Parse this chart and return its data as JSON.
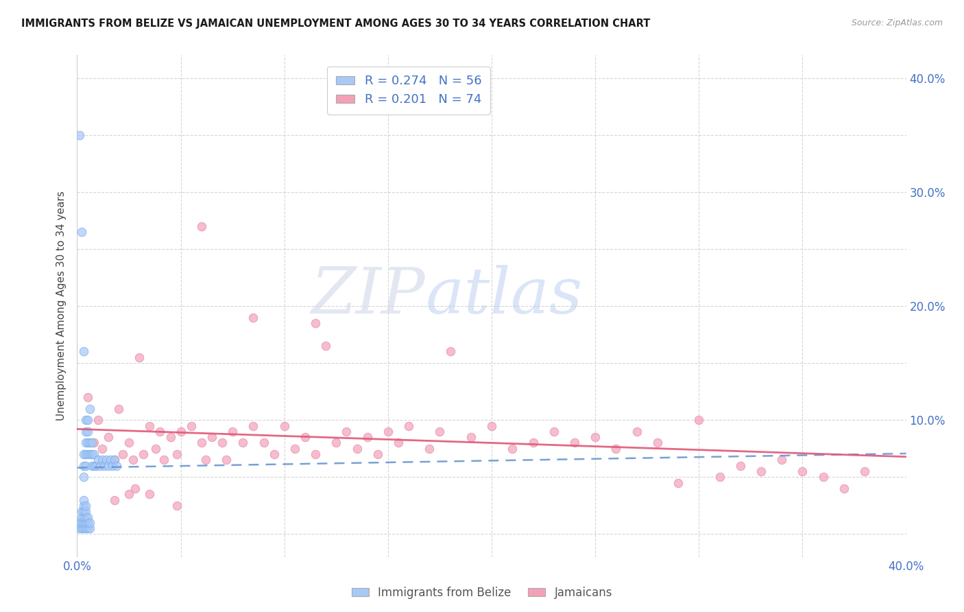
{
  "title": "IMMIGRANTS FROM BELIZE VS JAMAICAN UNEMPLOYMENT AMONG AGES 30 TO 34 YEARS CORRELATION CHART",
  "source": "Source: ZipAtlas.com",
  "ylabel": "Unemployment Among Ages 30 to 34 years",
  "xlim": [
    0.0,
    0.4
  ],
  "ylim": [
    -0.02,
    0.42
  ],
  "background_color": "#ffffff",
  "watermark_zip": "ZIP",
  "watermark_atlas": "atlas",
  "legend_R1": "R = 0.274",
  "legend_N1": "N = 56",
  "legend_R2": "R = 0.201",
  "legend_N2": "N = 74",
  "color_belize": "#a8c8f8",
  "color_jamaican": "#f4a0b8",
  "color_text_blue": "#4472c4",
  "color_trendline_belize": "#6090d0",
  "color_trendline_jamaican": "#e05878",
  "belize_x": [
    0.001,
    0.001,
    0.001,
    0.002,
    0.002,
    0.002,
    0.002,
    0.002,
    0.003,
    0.003,
    0.003,
    0.003,
    0.003,
    0.003,
    0.003,
    0.003,
    0.003,
    0.003,
    0.004,
    0.004,
    0.004,
    0.004,
    0.004,
    0.004,
    0.004,
    0.004,
    0.004,
    0.004,
    0.005,
    0.005,
    0.005,
    0.005,
    0.005,
    0.005,
    0.005,
    0.006,
    0.006,
    0.006,
    0.006,
    0.006,
    0.007,
    0.007,
    0.007,
    0.008,
    0.008,
    0.009,
    0.01,
    0.011,
    0.012,
    0.013,
    0.014,
    0.015,
    0.016,
    0.017,
    0.018,
    0.019
  ],
  "belize_y": [
    0.35,
    0.005,
    0.01,
    0.265,
    0.005,
    0.01,
    0.015,
    0.02,
    0.16,
    0.005,
    0.01,
    0.015,
    0.02,
    0.025,
    0.03,
    0.05,
    0.06,
    0.07,
    0.005,
    0.01,
    0.015,
    0.02,
    0.025,
    0.06,
    0.07,
    0.08,
    0.09,
    0.1,
    0.005,
    0.01,
    0.015,
    0.07,
    0.08,
    0.09,
    0.1,
    0.005,
    0.01,
    0.07,
    0.08,
    0.11,
    0.06,
    0.07,
    0.08,
    0.06,
    0.07,
    0.06,
    0.065,
    0.06,
    0.065,
    0.06,
    0.065,
    0.06,
    0.065,
    0.06,
    0.065,
    0.06
  ],
  "jamaican_x": [
    0.005,
    0.008,
    0.01,
    0.012,
    0.015,
    0.018,
    0.02,
    0.022,
    0.025,
    0.027,
    0.03,
    0.032,
    0.035,
    0.038,
    0.04,
    0.042,
    0.045,
    0.048,
    0.05,
    0.055,
    0.06,
    0.062,
    0.065,
    0.07,
    0.072,
    0.075,
    0.08,
    0.085,
    0.09,
    0.095,
    0.1,
    0.105,
    0.11,
    0.115,
    0.12,
    0.125,
    0.13,
    0.135,
    0.14,
    0.145,
    0.15,
    0.155,
    0.16,
    0.17,
    0.175,
    0.18,
    0.19,
    0.2,
    0.21,
    0.22,
    0.23,
    0.24,
    0.25,
    0.26,
    0.27,
    0.28,
    0.29,
    0.3,
    0.31,
    0.32,
    0.33,
    0.34,
    0.35,
    0.36,
    0.37,
    0.38,
    0.028,
    0.035,
    0.018,
    0.025,
    0.048,
    0.06,
    0.085,
    0.115
  ],
  "jamaican_y": [
    0.12,
    0.08,
    0.1,
    0.075,
    0.085,
    0.065,
    0.11,
    0.07,
    0.08,
    0.065,
    0.155,
    0.07,
    0.095,
    0.075,
    0.09,
    0.065,
    0.085,
    0.07,
    0.09,
    0.095,
    0.08,
    0.065,
    0.085,
    0.08,
    0.065,
    0.09,
    0.08,
    0.095,
    0.08,
    0.07,
    0.095,
    0.075,
    0.085,
    0.07,
    0.165,
    0.08,
    0.09,
    0.075,
    0.085,
    0.07,
    0.09,
    0.08,
    0.095,
    0.075,
    0.09,
    0.16,
    0.085,
    0.095,
    0.075,
    0.08,
    0.09,
    0.08,
    0.085,
    0.075,
    0.09,
    0.08,
    0.045,
    0.1,
    0.05,
    0.06,
    0.055,
    0.065,
    0.055,
    0.05,
    0.04,
    0.055,
    0.04,
    0.035,
    0.03,
    0.035,
    0.025,
    0.27,
    0.19,
    0.185
  ]
}
